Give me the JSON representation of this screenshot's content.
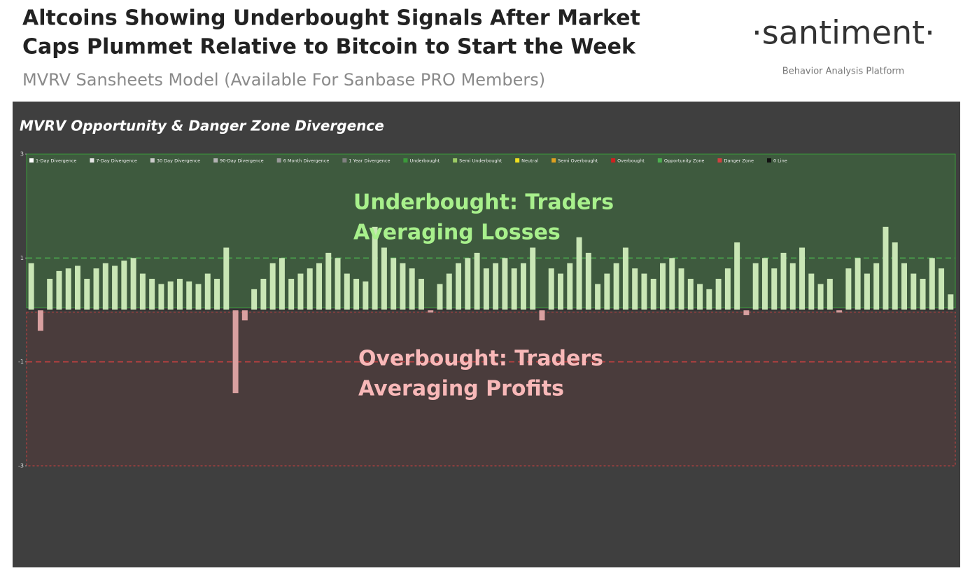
{
  "header": {
    "title": [
      "Altcoins Showing Underbought Signals After Market",
      "Caps Plummet Relative to Bitcoin to Start the Week"
    ],
    "subtitle": "MVRV Sansheets Model (Available For Sanbase PRO Members)"
  },
  "brand": {
    "name": "·santiment·",
    "tagline": "Behavior Analysis Platform"
  },
  "chart_data": {
    "type": "bar",
    "title": "MVRV Opportunity & Danger Zone Divergence",
    "legend": [
      {
        "name": "1-Day Divergence",
        "color": "#ffffff"
      },
      {
        "name": "7-Day Divergence",
        "color": "#e6e6e6"
      },
      {
        "name": "30 Day Divergence",
        "color": "#cccccc"
      },
      {
        "name": "90-Day Divergence",
        "color": "#b3b3b3"
      },
      {
        "name": "6 Month Divergence",
        "color": "#999999"
      },
      {
        "name": "1 Year Divergence",
        "color": "#808080"
      },
      {
        "name": "Underbought",
        "color": "#3a9a3a"
      },
      {
        "name": "Semi Underbought",
        "color": "#9ccc65"
      },
      {
        "name": "Neutral",
        "color": "#f0e020"
      },
      {
        "name": "Semi Overbought",
        "color": "#e0a020"
      },
      {
        "name": "Overbought",
        "color": "#d02020"
      },
      {
        "name": "Opportunity Zone",
        "color": "#4caf50"
      },
      {
        "name": "Danger Zone",
        "color": "#d04040"
      },
      {
        "name": "0 Line",
        "color": "#111111"
      }
    ],
    "annotations": [
      [
        "Underbought: Traders",
        "Averaging Losses"
      ],
      [
        "Overbought: Traders",
        "Averaging Profits"
      ]
    ],
    "opportunity_zone": 1,
    "danger_zone": -1,
    "ylim": [
      -3,
      3
    ],
    "yticks": [
      -3,
      -1,
      1,
      3
    ],
    "color_positive": "#c9e6b5",
    "color_negative": "#d9a0a0",
    "categories": [
      null,
      null,
      null,
      null,
      null,
      null,
      null,
      null,
      null,
      null,
      null,
      null,
      null,
      null,
      null,
      null,
      null,
      null,
      null,
      null,
      null,
      null,
      null,
      null,
      null,
      null,
      null,
      null,
      null,
      null,
      null,
      null,
      null,
      null,
      null,
      null,
      null,
      null,
      null,
      null,
      null,
      null,
      null,
      null,
      null,
      null,
      null,
      null,
      null,
      null,
      null,
      null,
      null,
      null,
      null,
      null,
      null,
      null,
      null,
      null,
      null,
      null,
      null,
      null,
      null,
      null,
      null,
      null,
      null,
      null,
      null,
      null,
      null,
      null,
      null,
      null,
      null,
      null,
      null,
      null,
      null,
      null,
      null,
      null,
      null,
      null,
      null,
      null,
      null,
      null,
      null,
      null,
      null,
      null,
      null,
      null,
      null,
      null,
      null,
      null
    ],
    "values": [
      0.9,
      -0.4,
      0.6,
      0.75,
      0.8,
      0.85,
      0.6,
      0.8,
      0.9,
      0.85,
      0.95,
      1.0,
      0.7,
      0.6,
      0.5,
      0.55,
      0.6,
      0.55,
      0.5,
      0.7,
      0.6,
      1.2,
      -1.6,
      -0.2,
      0.4,
      0.6,
      0.9,
      1.0,
      0.6,
      0.7,
      0.8,
      0.9,
      1.1,
      1.0,
      0.7,
      0.6,
      0.55,
      1.6,
      1.2,
      1.0,
      0.9,
      0.8,
      0.6,
      -0.05,
      0.5,
      0.7,
      0.9,
      1.0,
      1.1,
      0.8,
      0.9,
      1.0,
      0.8,
      0.9,
      1.2,
      -0.2,
      0.8,
      0.7,
      0.9,
      1.4,
      1.1,
      0.5,
      0.7,
      0.9,
      1.2,
      0.8,
      0.7,
      0.6,
      0.9,
      1.0,
      0.8,
      0.6,
      0.5,
      0.4,
      0.6,
      0.8,
      1.3,
      -0.1,
      0.9,
      1.0,
      0.8,
      1.1,
      0.9,
      1.2,
      0.7,
      0.5,
      0.6,
      -0.05,
      0.8,
      1.0,
      0.7,
      0.9,
      1.6,
      1.3,
      0.9,
      0.7,
      0.6,
      1.0,
      0.8,
      0.3
    ]
  }
}
